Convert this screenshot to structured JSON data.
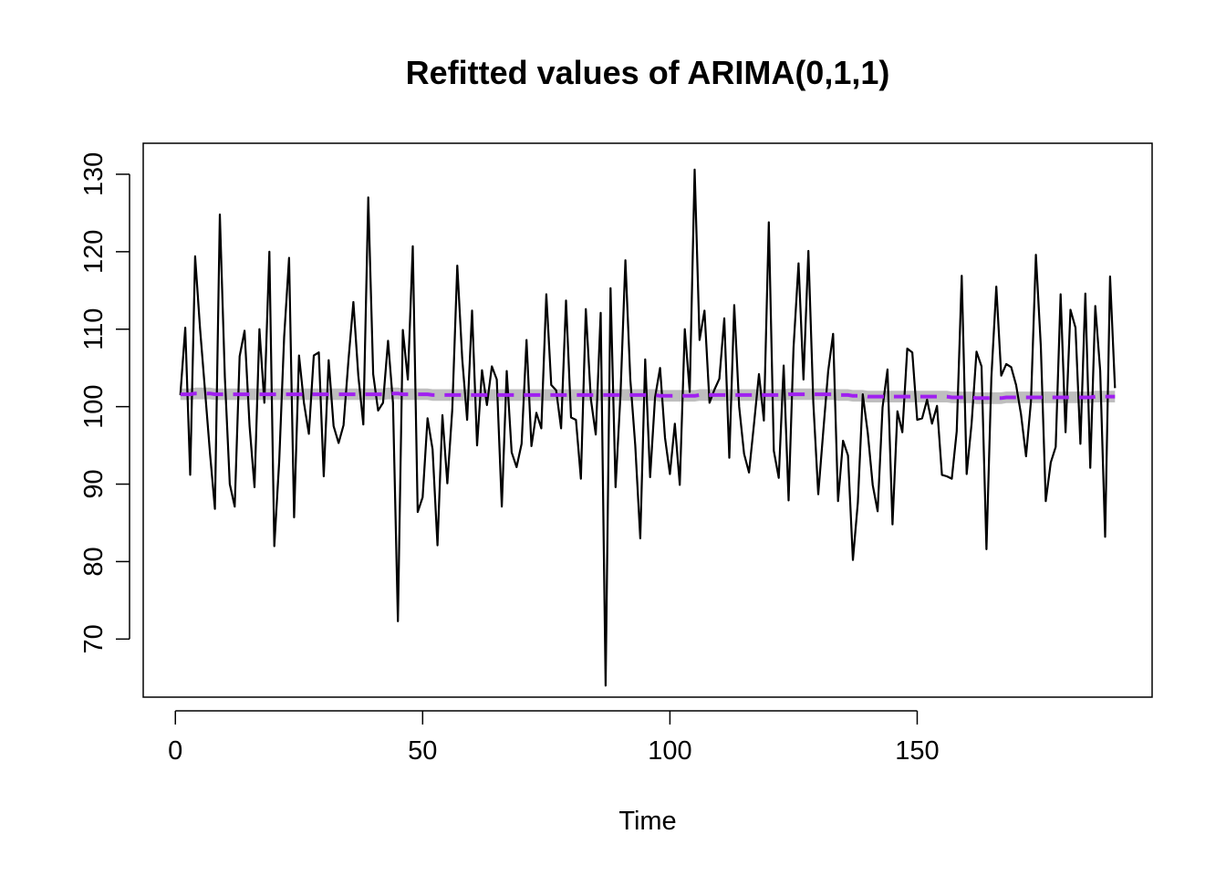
{
  "chart_data": {
    "type": "line",
    "title": "Refitted values of ARIMA(0,1,1)",
    "xlabel": "Time",
    "ylabel": "",
    "xlim": [
      -6.5,
      197.5
    ],
    "ylim": [
      62.5,
      134
    ],
    "xticks": [
      0,
      50,
      100,
      150
    ],
    "yticks": [
      70,
      80,
      90,
      100,
      110,
      120,
      130
    ],
    "grid": false,
    "legend": "none",
    "colors": {
      "actual": "#000000",
      "fitted": "#a020f0",
      "band": "#bebebe"
    },
    "x": [
      1,
      2,
      3,
      4,
      5,
      6,
      7,
      8,
      9,
      10,
      11,
      12,
      13,
      14,
      15,
      16,
      17,
      18,
      19,
      20,
      21,
      22,
      23,
      24,
      25,
      26,
      27,
      28,
      29,
      30,
      31,
      32,
      33,
      34,
      35,
      36,
      37,
      38,
      39,
      40,
      41,
      42,
      43,
      44,
      45,
      46,
      47,
      48,
      49,
      50,
      51,
      52,
      53,
      54,
      55,
      56,
      57,
      58,
      59,
      60,
      61,
      62,
      63,
      64,
      65,
      66,
      67,
      68,
      69,
      70,
      71,
      72,
      73,
      74,
      75,
      76,
      77,
      78,
      79,
      80,
      81,
      82,
      83,
      84,
      85,
      86,
      87,
      88,
      89,
      90,
      91,
      92,
      93,
      94,
      95,
      96,
      97,
      98,
      99,
      100,
      101,
      102,
      103,
      104,
      105,
      106,
      107,
      108,
      109,
      110,
      111,
      112,
      113,
      114,
      115,
      116,
      117,
      118,
      119,
      120,
      121,
      122,
      123,
      124,
      125,
      126,
      127,
      128,
      129,
      130,
      131,
      132,
      133,
      134,
      135,
      136,
      137,
      138,
      139,
      140,
      141,
      142,
      143,
      144,
      145,
      146,
      147,
      148,
      149,
      150,
      151,
      152,
      153,
      154,
      155,
      156,
      157,
      158,
      159,
      160,
      161,
      162,
      163,
      164,
      165,
      166,
      167,
      168,
      169,
      170,
      171,
      172,
      173,
      174,
      175,
      176,
      177,
      178,
      179,
      180,
      181,
      182,
      183,
      184,
      185,
      186,
      187,
      188,
      189,
      190
    ],
    "series": [
      {
        "values": [
          101.5,
          110.2,
          91.2,
          119.4,
          110.1,
          102.0,
          94.0,
          86.8,
          124.8,
          103.8,
          90.0,
          87.1,
          106.5,
          109.8,
          97.5,
          89.6,
          110.0,
          100.5,
          120.0,
          82.0,
          93.0,
          109.0,
          119.2,
          85.7,
          106.6,
          100.5,
          96.5,
          106.6,
          107.0,
          91.0,
          106.0,
          97.5,
          95.3,
          97.6,
          106.0,
          113.5,
          104.0,
          97.7,
          127.0,
          104.2,
          99.5,
          100.5,
          108.5,
          100.5,
          72.3,
          109.9,
          103.5,
          120.7,
          86.4,
          88.3,
          98.5,
          94.5,
          82.1,
          98.9,
          90.1,
          99.6,
          118.2,
          106.2,
          98.3,
          112.4,
          95.0,
          104.7,
          100.2,
          105.2,
          103.5,
          87.1,
          104.6,
          94.1,
          92.2,
          95.2,
          108.6,
          94.9,
          99.2,
          97.2,
          114.5,
          102.8,
          102.1,
          97.2,
          113.7,
          98.6,
          98.3,
          90.7,
          112.6,
          101.0,
          96.4,
          112.1,
          64.0,
          115.3,
          89.6,
          101.5,
          118.9,
          103.5,
          95.0,
          83.0,
          106.1,
          90.9,
          101.2,
          105.0,
          96.0,
          91.3,
          97.8,
          89.9,
          110.0,
          101.9,
          130.6,
          108.6,
          112.4,
          100.5,
          102.2,
          103.6,
          111.4,
          93.4,
          113.1,
          100.0,
          93.9,
          91.5,
          97.8,
          104.2,
          98.2,
          123.8,
          94.3,
          90.8,
          105.3,
          87.9,
          107.6,
          118.5,
          103.5,
          120.1,
          100.5,
          88.7,
          96.8,
          104.6,
          109.4,
          87.8,
          95.6,
          93.7,
          80.2,
          87.6,
          101.6,
          96.6,
          89.9,
          86.5,
          99.9,
          104.8,
          84.8,
          99.4,
          96.7,
          107.5,
          107.0,
          98.3,
          98.5,
          100.9,
          97.8,
          100.1,
          91.2,
          91.0,
          90.7,
          96.8,
          116.9,
          91.3,
          97.8,
          107.1,
          105.2,
          81.6,
          103.8,
          115.5,
          104.0,
          105.5,
          105.1,
          102.8,
          99.0,
          93.6,
          100.7,
          119.6,
          107.8,
          87.8,
          92.8,
          94.8,
          114.5,
          96.7,
          112.5,
          110.2,
          95.2,
          114.6,
          92.1,
          113.0,
          104.6,
          83.2,
          116.8,
          102.4
        ]
      },
      {
        "values": [
          101.6,
          101.6,
          101.6,
          101.7,
          101.7,
          101.7,
          101.7,
          101.6,
          101.6,
          101.6,
          101.6,
          101.6,
          101.6,
          101.6,
          101.6,
          101.6,
          101.6,
          101.6,
          101.6,
          101.6,
          101.6,
          101.6,
          101.6,
          101.6,
          101.6,
          101.6,
          101.6,
          101.6,
          101.6,
          101.6,
          101.6,
          101.6,
          101.6,
          101.6,
          101.6,
          101.6,
          101.6,
          101.6,
          101.6,
          101.6,
          101.6,
          101.6,
          101.7,
          101.7,
          101.7,
          101.6,
          101.6,
          101.6,
          101.6,
          101.6,
          101.6,
          101.5,
          101.5,
          101.5,
          101.5,
          101.5,
          101.5,
          101.5,
          101.5,
          101.5,
          101.5,
          101.5,
          101.5,
          101.5,
          101.5,
          101.5,
          101.5,
          101.5,
          101.5,
          101.5,
          101.5,
          101.5,
          101.5,
          101.5,
          101.5,
          101.5,
          101.5,
          101.5,
          101.5,
          101.5,
          101.5,
          101.5,
          101.5,
          101.5,
          101.5,
          101.5,
          101.5,
          101.5,
          101.5,
          101.5,
          101.5,
          101.5,
          101.5,
          101.5,
          101.5,
          101.5,
          101.5,
          101.4,
          101.4,
          101.4,
          101.4,
          101.4,
          101.4,
          101.4,
          101.4,
          101.5,
          101.5,
          101.5,
          101.5,
          101.5,
          101.5,
          101.5,
          101.5,
          101.5,
          101.5,
          101.5,
          101.5,
          101.5,
          101.5,
          101.5,
          101.5,
          101.5,
          101.5,
          101.6,
          101.6,
          101.6,
          101.6,
          101.6,
          101.6,
          101.6,
          101.6,
          101.6,
          101.6,
          101.5,
          101.5,
          101.5,
          101.4,
          101.4,
          101.4,
          101.3,
          101.3,
          101.3,
          101.3,
          101.3,
          101.3,
          101.3,
          101.3,
          101.3,
          101.3,
          101.3,
          101.3,
          101.3,
          101.3,
          101.3,
          101.3,
          101.3,
          101.2,
          101.2,
          101.2,
          101.2,
          101.2,
          101.1,
          101.1,
          101.1,
          101.1,
          101.1,
          101.1,
          101.2,
          101.2,
          101.2,
          101.2,
          101.2,
          101.2,
          101.2,
          101.2,
          101.2,
          101.2,
          101.2,
          101.2,
          101.2,
          101.2,
          101.2,
          101.2,
          101.2,
          101.2,
          101.3,
          101.3,
          101.3,
          101.3,
          101.3
        ]
      }
    ]
  }
}
